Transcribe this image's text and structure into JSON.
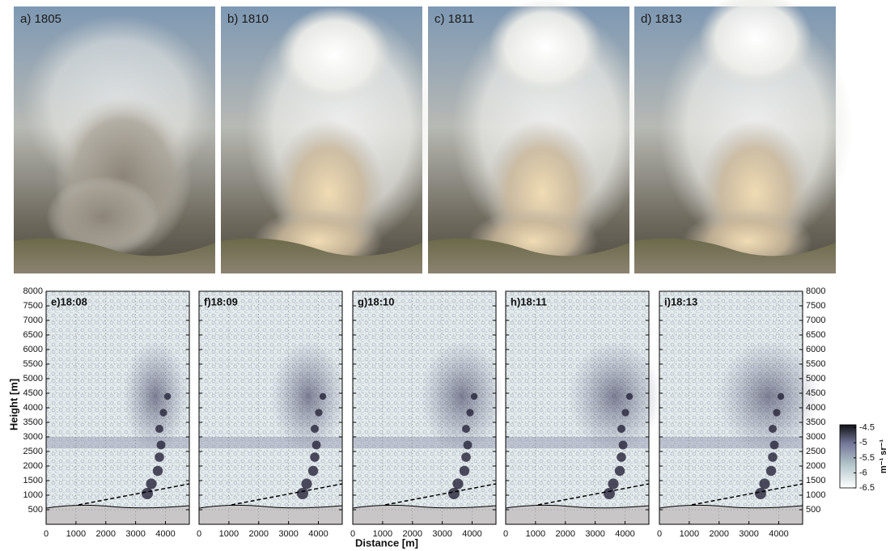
{
  "photos": [
    {
      "label": "a) 1805"
    },
    {
      "label": "b) 1810"
    },
    {
      "label": "c) 1811"
    },
    {
      "label": "d) 1813"
    }
  ],
  "x_label": "Distance [m]",
  "y_label": "Height [m]",
  "chart_data": [
    {
      "type": "scatter",
      "label": "e)18:08",
      "xlim": [
        0,
        4800
      ],
      "ylim": [
        0,
        8000
      ],
      "xticks": [
        0,
        1000,
        2000,
        3000,
        4000
      ],
      "yticks": [
        500,
        1000,
        1500,
        2000,
        2500,
        3000,
        3500,
        4000,
        4500,
        5000,
        5500,
        6000,
        6500,
        7000,
        7500,
        8000
      ],
      "grid": true
    },
    {
      "type": "scatter",
      "label": "f)18:09",
      "xlim": [
        0,
        4800
      ],
      "ylim": [
        0,
        8000
      ],
      "xticks": [
        0,
        1000,
        2000,
        3000,
        4000
      ],
      "yticks": [
        500,
        1000,
        1500,
        2000,
        2500,
        3000,
        3500,
        4000,
        4500,
        5000,
        5500,
        6000,
        6500,
        7000,
        7500,
        8000
      ],
      "grid": true
    },
    {
      "type": "scatter",
      "label": "g)18:10",
      "xlim": [
        0,
        4800
      ],
      "ylim": [
        0,
        8000
      ],
      "xticks": [
        0,
        1000,
        2000,
        3000,
        4000
      ],
      "yticks": [
        500,
        1000,
        1500,
        2000,
        2500,
        3000,
        3500,
        4000,
        4500,
        5000,
        5500,
        6000,
        6500,
        7000,
        7500,
        8000
      ],
      "grid": true
    },
    {
      "type": "scatter",
      "label": "h)18:11",
      "xlim": [
        0,
        4800
      ],
      "ylim": [
        0,
        8000
      ],
      "xticks": [
        0,
        1000,
        2000,
        3000,
        4000
      ],
      "yticks": [
        500,
        1000,
        1500,
        2000,
        2500,
        3000,
        3500,
        4000,
        4500,
        5000,
        5500,
        6000,
        6500,
        7000,
        7500,
        8000
      ],
      "grid": true
    },
    {
      "type": "scatter",
      "label": "i)18:13",
      "xlim": [
        0,
        4800
      ],
      "ylim": [
        0,
        8000
      ],
      "xticks": [
        0,
        1000,
        2000,
        3000,
        4000
      ],
      "yticks": [
        500,
        1000,
        1500,
        2000,
        2500,
        3000,
        3500,
        4000,
        4500,
        5000,
        5500,
        6000,
        6500,
        7000,
        7500,
        8000
      ],
      "grid": true
    }
  ],
  "colorbar": {
    "label": "m⁻¹ sr⁻¹",
    "lim": [
      -6.5,
      -4.4
    ],
    "ticks": [
      -4.5,
      -5,
      -5.5,
      -6,
      -6.5
    ]
  }
}
